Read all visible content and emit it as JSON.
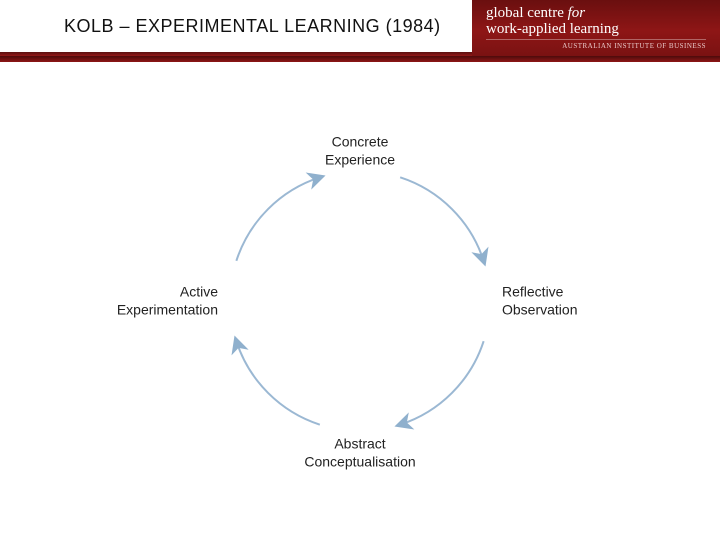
{
  "header": {
    "title": "KOLB – EXPERIMENTAL LEARNING (1984)",
    "title_color": "#111111",
    "title_fontsize": 18,
    "brand_line1_a": "global centre",
    "brand_line1_b": "for",
    "brand_line2": "work-applied learning",
    "brand_sub": "AUSTRALIAN INSTITUTE OF BUSINESS",
    "band_bg_start": "#6a0f0f",
    "band_bg_end": "#8e1616"
  },
  "diagram": {
    "type": "cycle",
    "circle_color": "#9bb8d3",
    "circle_stroke_width": 2,
    "arrowhead_color": "#8fb0cd",
    "background_color": "#ffffff",
    "label_color": "#222222",
    "label_fontsize": 14,
    "svg_size": 360,
    "radius": 130,
    "nodes": [
      {
        "id": "concrete",
        "angle_deg": -90,
        "line1": "Concrete",
        "line2": "Experience",
        "pos": "top"
      },
      {
        "id": "reflect",
        "angle_deg": 0,
        "line1": "Reflective",
        "line2": "Observation",
        "pos": "right"
      },
      {
        "id": "abstract",
        "angle_deg": 90,
        "line1": "Abstract",
        "line2": "Conceptualisation",
        "pos": "bottom"
      },
      {
        "id": "active",
        "angle_deg": 180,
        "line1": "Active",
        "line2": "Experimentation",
        "pos": "left"
      }
    ],
    "arcs": [
      {
        "from": "concrete",
        "to": "reflect"
      },
      {
        "from": "reflect",
        "to": "abstract"
      },
      {
        "from": "abstract",
        "to": "active"
      },
      {
        "from": "active",
        "to": "concrete"
      }
    ]
  }
}
